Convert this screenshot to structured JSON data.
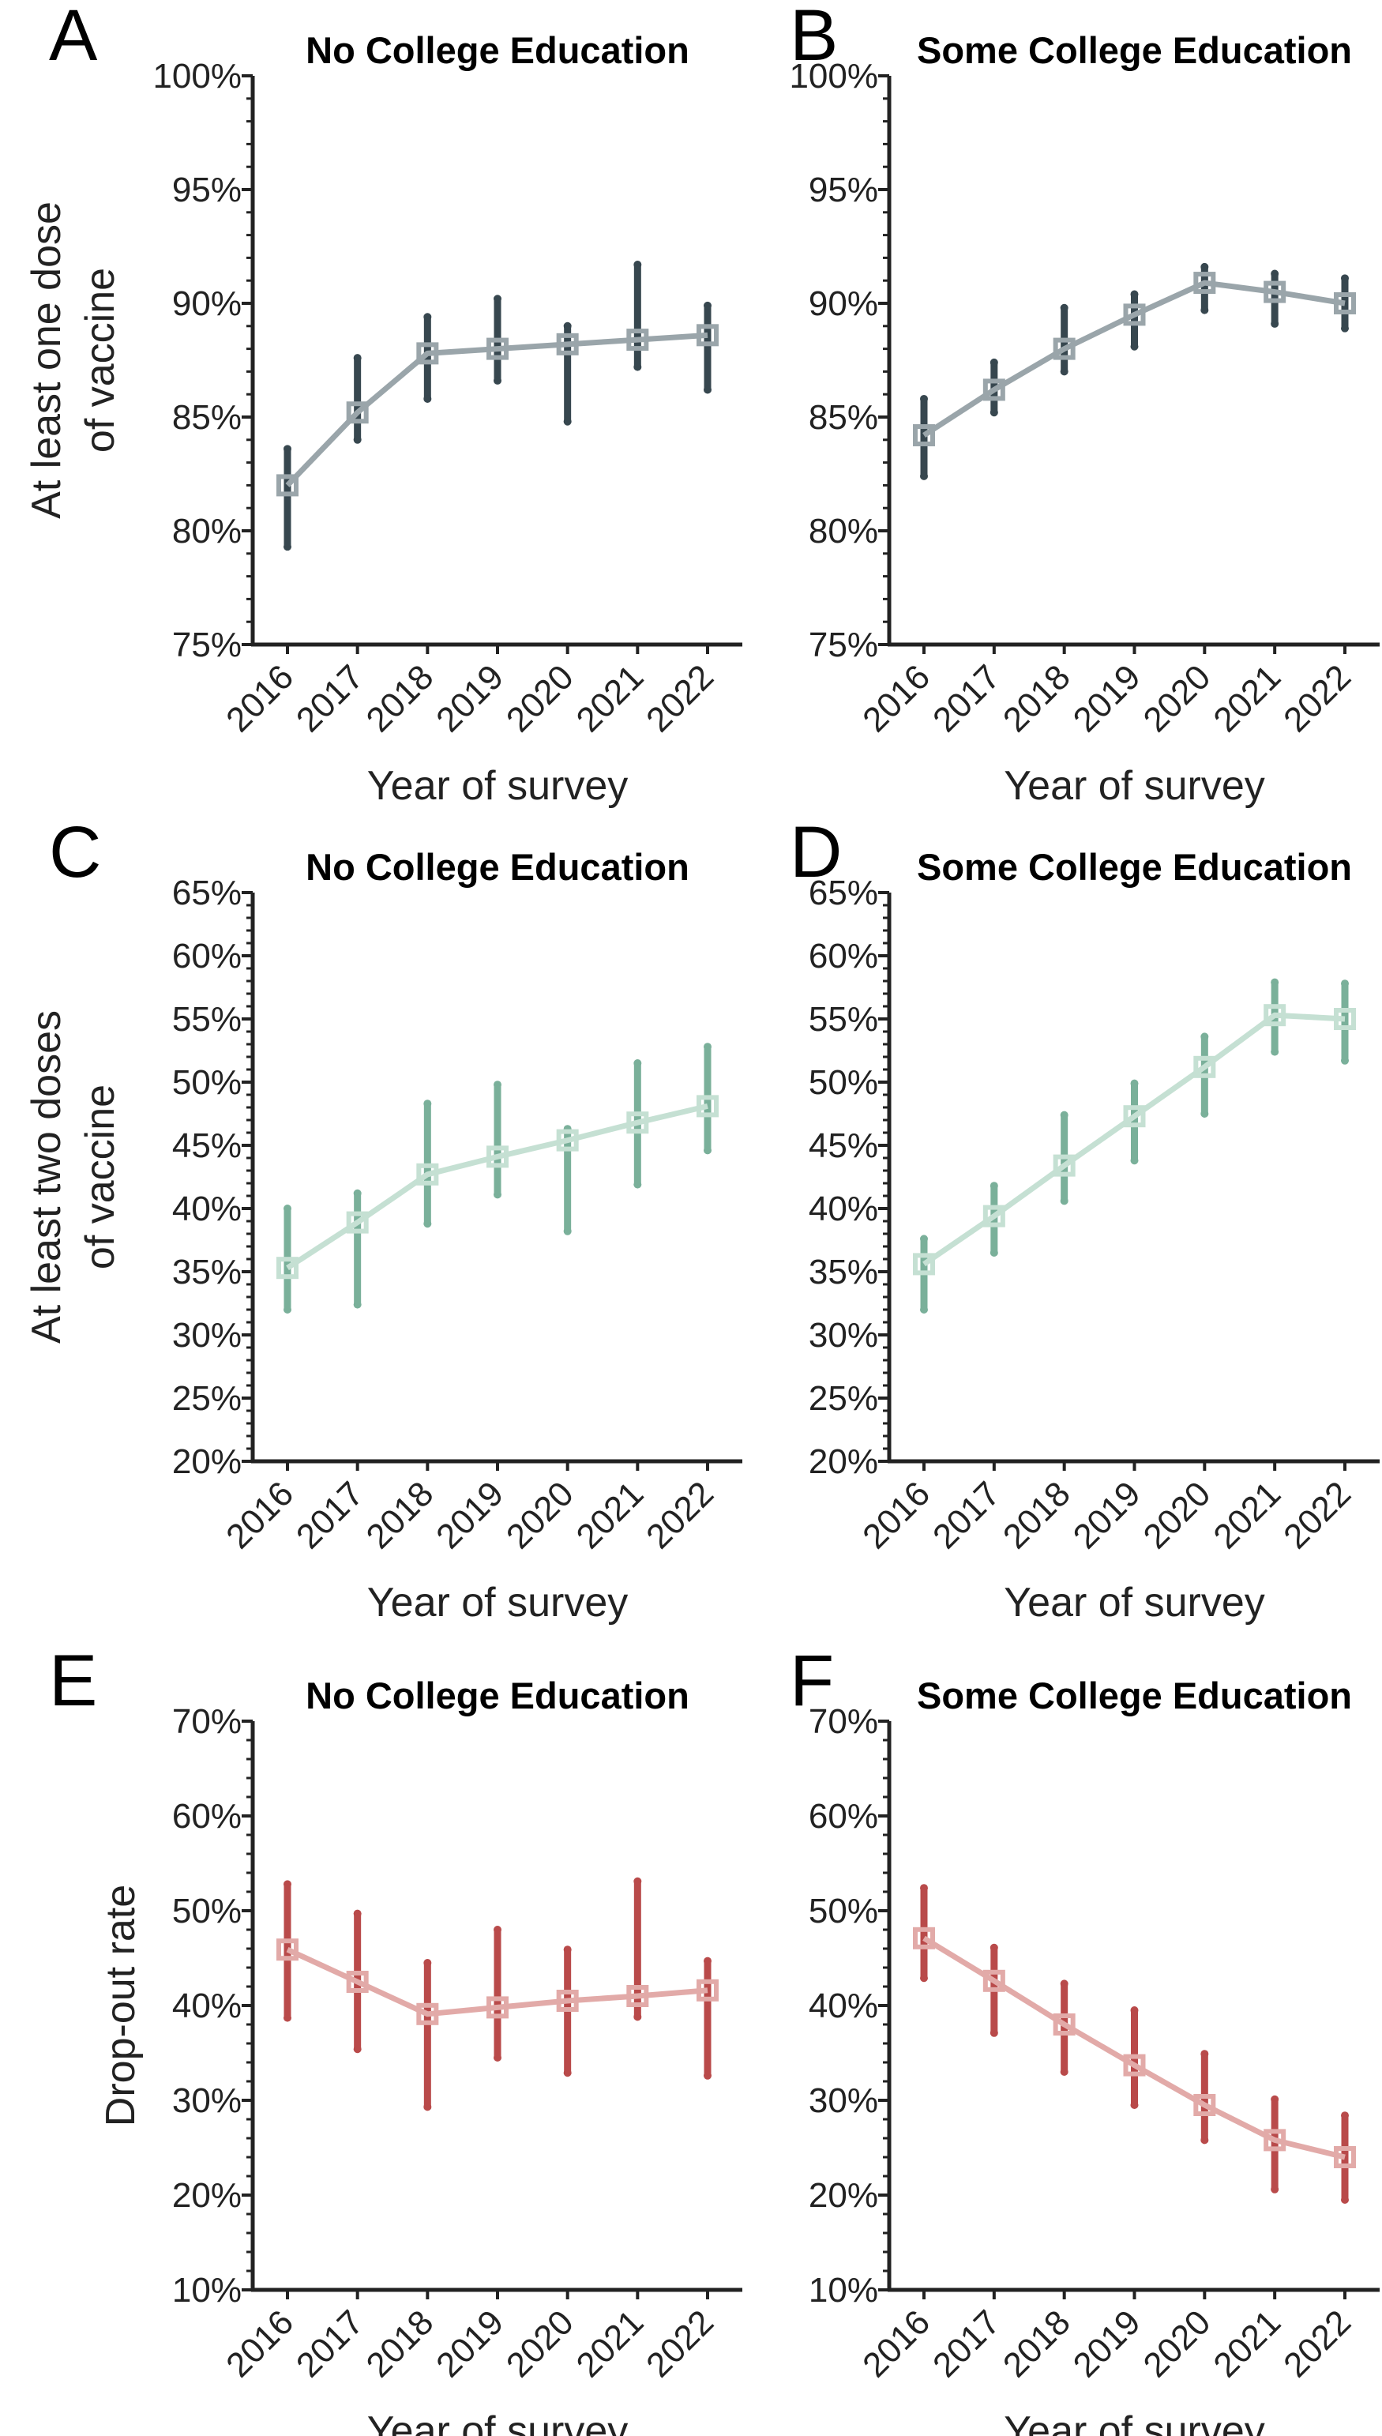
{
  "chart_data": [
    {
      "panel": "A",
      "type": "line",
      "title": "No College Education",
      "xlabel": "Year of survey",
      "ylabel": [
        "At least one dose",
        "of vaccine"
      ],
      "categories": [
        "2016",
        "2017",
        "2018",
        "2019",
        "2020",
        "2021",
        "2022"
      ],
      "yticks": [
        "75%",
        "80%",
        "85%",
        "90%",
        "95%",
        "100%"
      ],
      "ylim": [
        75,
        100
      ],
      "values": [
        82.0,
        85.2,
        87.8,
        88.0,
        88.2,
        88.4,
        88.6
      ],
      "range_low": [
        79.3,
        84.0,
        85.8,
        86.6,
        84.8,
        87.2,
        86.2
      ],
      "range_high": [
        83.6,
        87.6,
        89.4,
        90.2,
        89.0,
        91.7,
        89.9
      ],
      "colors": {
        "line": "#9aa5aa",
        "range": "#37474f"
      }
    },
    {
      "panel": "B",
      "type": "line",
      "title": "Some College Education",
      "xlabel": "Year of survey",
      "ylabel": "",
      "categories": [
        "2016",
        "2017",
        "2018",
        "2019",
        "2020",
        "2021",
        "2022"
      ],
      "yticks": [
        "75%",
        "80%",
        "85%",
        "90%",
        "95%",
        "100%"
      ],
      "ylim": [
        75,
        100
      ],
      "values": [
        84.2,
        86.2,
        88.0,
        89.5,
        90.9,
        90.5,
        90.0
      ],
      "range_low": [
        82.4,
        85.2,
        87.0,
        88.1,
        89.7,
        89.1,
        88.9
      ],
      "range_high": [
        85.8,
        87.4,
        89.8,
        90.4,
        91.6,
        91.3,
        91.1
      ],
      "colors": {
        "line": "#9aa5aa",
        "range": "#37474f"
      }
    },
    {
      "panel": "C",
      "type": "line",
      "title": "No College Education",
      "xlabel": "Year of survey",
      "ylabel": [
        "At least two doses",
        "of vaccine"
      ],
      "categories": [
        "2016",
        "2017",
        "2018",
        "2019",
        "2020",
        "2021",
        "2022"
      ],
      "yticks": [
        "20%",
        "25%",
        "30%",
        "35%",
        "40%",
        "45%",
        "50%",
        "55%",
        "60%",
        "65%"
      ],
      "ylim": [
        20,
        65
      ],
      "values": [
        35.3,
        38.9,
        42.7,
        44.1,
        45.4,
        46.8,
        48.1
      ],
      "range_low": [
        32.0,
        32.4,
        38.8,
        41.1,
        38.2,
        41.9,
        44.6
      ],
      "range_high": [
        40.0,
        41.2,
        48.3,
        49.8,
        46.3,
        51.5,
        52.8
      ],
      "colors": {
        "line": "#c5e0d3",
        "range": "#7ab09a"
      }
    },
    {
      "panel": "D",
      "type": "line",
      "title": "Some College Education",
      "xlabel": "Year of survey",
      "ylabel": "",
      "categories": [
        "2016",
        "2017",
        "2018",
        "2019",
        "2020",
        "2021",
        "2022"
      ],
      "yticks": [
        "20%",
        "25%",
        "30%",
        "35%",
        "40%",
        "45%",
        "50%",
        "55%",
        "60%",
        "65%"
      ],
      "ylim": [
        20,
        65
      ],
      "values": [
        35.6,
        39.4,
        43.4,
        47.3,
        51.2,
        55.3,
        55.0
      ],
      "range_low": [
        32.0,
        36.5,
        40.6,
        43.8,
        47.5,
        52.4,
        51.7
      ],
      "range_high": [
        37.6,
        41.8,
        47.4,
        49.9,
        53.6,
        57.9,
        57.8
      ],
      "colors": {
        "line": "#c5e0d3",
        "range": "#7ab09a"
      }
    },
    {
      "panel": "E",
      "type": "line",
      "title": "No College Education",
      "xlabel": "Year of survey",
      "ylabel": "Drop-out rate",
      "categories": [
        "2016",
        "2017",
        "2018",
        "2019",
        "2020",
        "2021",
        "2022"
      ],
      "yticks": [
        "10%",
        "20%",
        "30%",
        "40%",
        "50%",
        "60%",
        "70%"
      ],
      "ylim": [
        10,
        70
      ],
      "values": [
        45.9,
        42.5,
        39.1,
        39.8,
        40.5,
        41.0,
        41.6
      ],
      "range_low": [
        38.7,
        35.4,
        29.3,
        34.5,
        32.9,
        38.8,
        32.6
      ],
      "range_high": [
        52.8,
        49.7,
        44.5,
        48.0,
        45.9,
        53.1,
        44.7
      ],
      "colors": {
        "line": "#e2aaa8",
        "range": "#b94a4a"
      }
    },
    {
      "panel": "F",
      "type": "line",
      "title": "Some College Education",
      "xlabel": "Year of survey",
      "ylabel": "",
      "categories": [
        "2016",
        "2017",
        "2018",
        "2019",
        "2020",
        "2021",
        "2022"
      ],
      "yticks": [
        "10%",
        "20%",
        "30%",
        "40%",
        "50%",
        "60%",
        "70%"
      ],
      "ylim": [
        10,
        70
      ],
      "values": [
        47.1,
        42.6,
        38.0,
        33.7,
        29.5,
        25.8,
        24.0
      ],
      "range_low": [
        42.9,
        37.1,
        33.0,
        29.5,
        25.8,
        20.6,
        19.5
      ],
      "range_high": [
        52.4,
        46.1,
        42.3,
        39.5,
        34.9,
        30.1,
        28.4
      ],
      "colors": {
        "line": "#e2aaa8",
        "range": "#b94a4a"
      }
    }
  ]
}
